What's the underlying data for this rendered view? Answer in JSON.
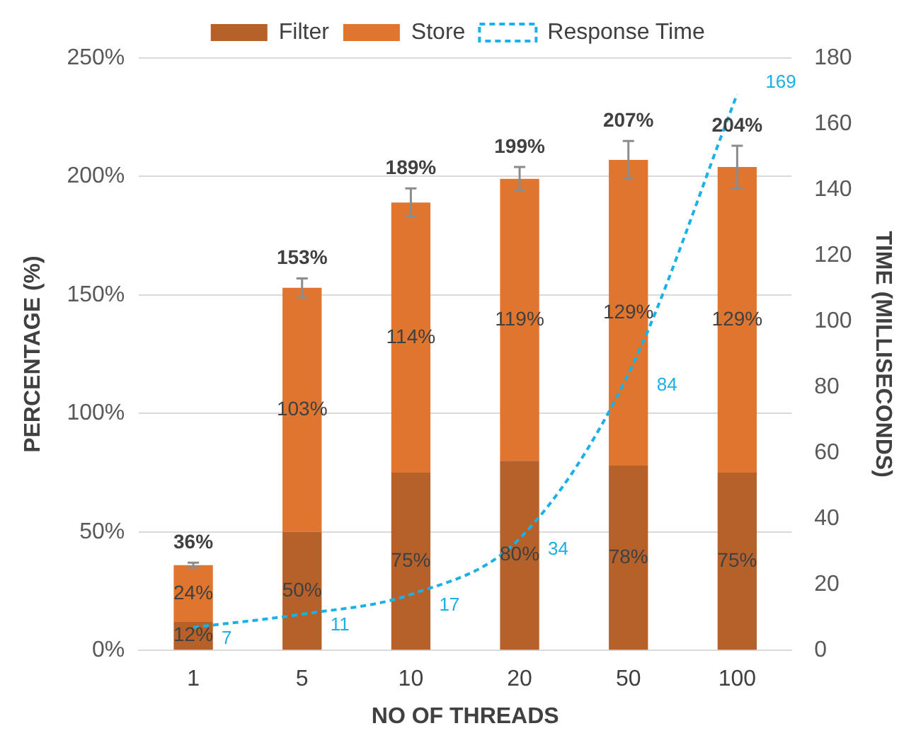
{
  "chart_data": {
    "type": "bar",
    "stacked": true,
    "categories": [
      "1",
      "5",
      "10",
      "20",
      "50",
      "100"
    ],
    "xlabel": "NO OF THREADS",
    "ylabel": "PERCENTAGE (%)",
    "y2label": "TIME (MILLISECONDS)",
    "ylim": [
      0,
      250
    ],
    "yticks": [
      {
        "value": 0,
        "label": "0%"
      },
      {
        "value": 50,
        "label": "50%"
      },
      {
        "value": 100,
        "label": "100%"
      },
      {
        "value": 150,
        "label": "150%"
      },
      {
        "value": 200,
        "label": "200%"
      },
      {
        "value": 250,
        "label": "250%"
      }
    ],
    "y2lim": [
      0,
      180
    ],
    "y2ticks": [
      0,
      20,
      40,
      60,
      80,
      100,
      120,
      140,
      160,
      180
    ],
    "grid": "y",
    "legend": "top",
    "totals": [
      "36%",
      "153%",
      "189%",
      "199%",
      "207%",
      "204%"
    ],
    "series": [
      {
        "name": "Filter",
        "color": "#b7612a",
        "values": [
          12,
          50,
          75,
          80,
          78,
          75
        ],
        "value_labels": [
          "12%",
          "50%",
          "75%",
          "80%",
          "78%",
          "75%"
        ]
      },
      {
        "name": "Store",
        "color": "#df752e",
        "values": [
          24,
          103,
          114,
          119,
          129,
          129
        ],
        "value_labels": [
          "24%",
          "103%",
          "114%",
          "119%",
          "129%",
          "129%"
        ],
        "errors": [
          1,
          4,
          6,
          5,
          8,
          9
        ]
      },
      {
        "name": "Response Time",
        "type": "line",
        "axis": "y2",
        "color": "#1ab0e8",
        "line_style": "dashed",
        "marker": "none",
        "values": [
          7,
          11,
          17,
          34,
          84,
          169
        ],
        "value_labels": [
          "7",
          "11",
          "17",
          "34",
          "84",
          "169"
        ]
      }
    ]
  }
}
